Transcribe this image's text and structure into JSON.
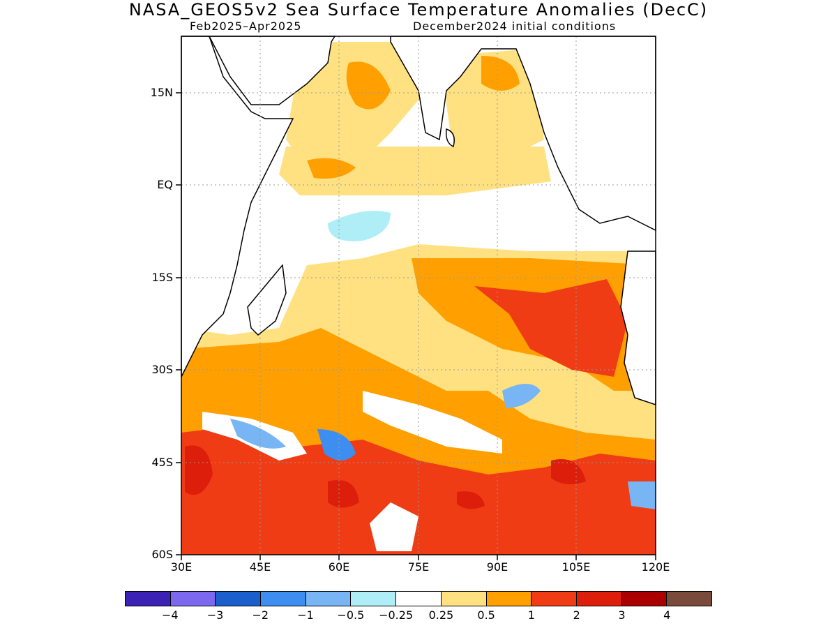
{
  "title": "NASA_GEOS5v2 Sea Surface Temperature Anomalies (DecC)",
  "subtitle_left": "Feb2025–Apr2025",
  "subtitle_right": "December2024 initial conditions",
  "axes": {
    "lat_labels": [
      "15N",
      "EQ",
      "15S",
      "30S",
      "45S",
      "60S"
    ],
    "lon_labels": [
      "30E",
      "45E",
      "60E",
      "75E",
      "90E",
      "105E",
      "120E"
    ]
  },
  "colorbar": {
    "colors": [
      "#3b22b4",
      "#7b68ee",
      "#1a5fcc",
      "#3d8ef0",
      "#78b5f5",
      "#b0eef7",
      "#ffffff",
      "#ffe182",
      "#ffa000",
      "#f03c14",
      "#dc1e0a",
      "#aa0000",
      "#7a4a3a"
    ],
    "labels": [
      "−4",
      "−3",
      "−2",
      "−1",
      "−0.5",
      "−0.25",
      "0.25",
      "0.5",
      "1",
      "2",
      "3",
      "4"
    ]
  },
  "colors": {
    "land": "#ffffff",
    "coast": "#000000",
    "grid": "#999999"
  }
}
